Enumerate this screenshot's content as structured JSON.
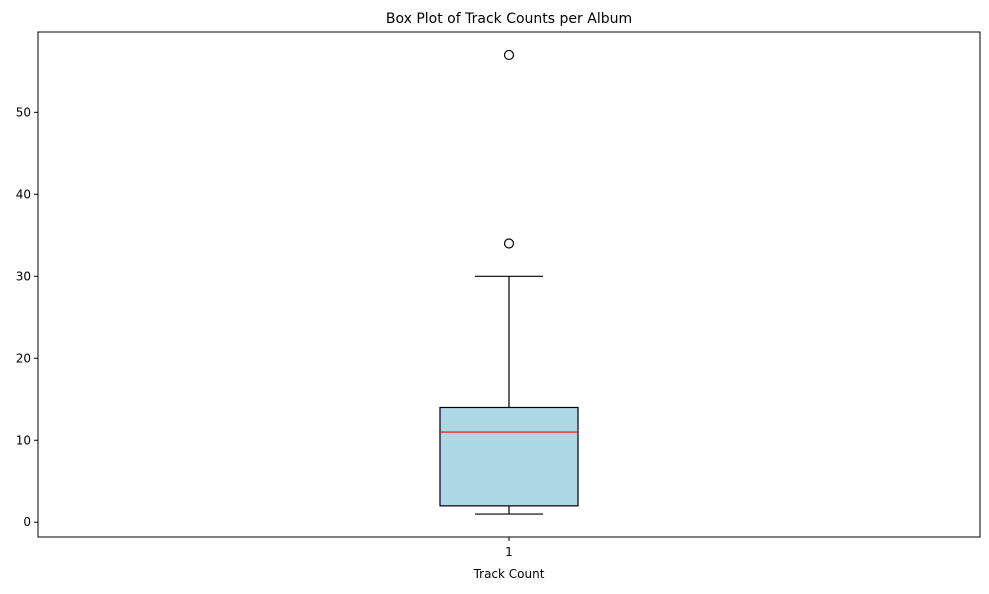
{
  "chart_data": {
    "type": "box",
    "title": "Box Plot of Track Counts per Album",
    "xlabel": "Track Count",
    "ylabel": "",
    "x_tick_labels": [
      "1"
    ],
    "y_ticks": [
      0,
      10,
      20,
      30,
      40,
      50
    ],
    "ylim": [
      -1.8,
      59.8
    ],
    "grid": false,
    "boxes": [
      {
        "category": "1",
        "whisker_low": 1,
        "q1": 2,
        "median": 11,
        "q3": 14,
        "whisker_high": 30,
        "outliers": [
          34,
          57
        ]
      }
    ],
    "colors": {
      "box_fill": "#add8e6",
      "box_edge": "#000000",
      "median_line": "#ff0000",
      "whisker": "#000000",
      "outlier_edge": "#000000",
      "axes_edge": "#000000"
    }
  }
}
